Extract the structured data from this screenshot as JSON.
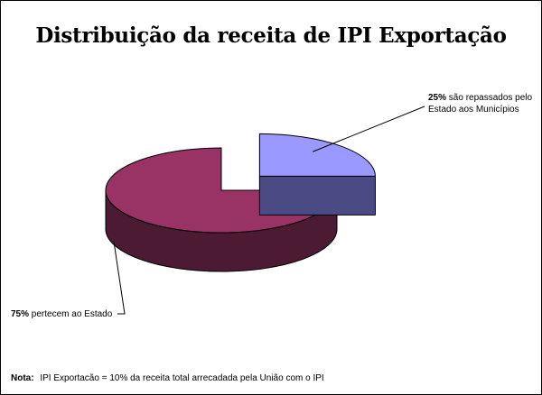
{
  "chart_data": {
    "type": "pie",
    "title": "Distribuição da receita de IPI Exportação",
    "slices": [
      {
        "value": 25,
        "percent_label": "25%",
        "text_line1": "são repassados pelo",
        "text_line2": "Estado aos Municípios",
        "color_top": "#9999ff",
        "color_side": "#4a4a85",
        "exploded": true
      },
      {
        "value": 75,
        "percent_label": "75%",
        "text_line1": "pertecem ao Estado",
        "color_top": "#993366",
        "color_side": "#4d1a33",
        "exploded": false
      }
    ],
    "style": "3d-exploded",
    "legend": "none"
  },
  "note": {
    "key": "Nota:",
    "text": "IPI Exportacão = 10% da receita total arrecadada pela União com o IPI"
  }
}
